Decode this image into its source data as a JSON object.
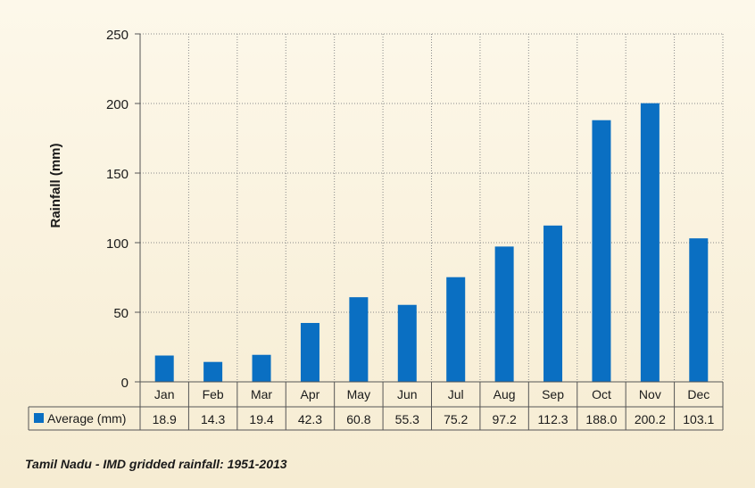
{
  "caption": "Tamil Nadu - IMD gridded rainfall: 1951-2013",
  "colors": {
    "bar": "#0a6fc2",
    "grid": "#8a8a8a",
    "axis": "#555555",
    "text": "#1a1a1a"
  },
  "chart_data": {
    "type": "bar",
    "categories": [
      "Jan",
      "Feb",
      "Mar",
      "Apr",
      "May",
      "Jun",
      "Jul",
      "Aug",
      "Sep",
      "Oct",
      "Nov",
      "Dec"
    ],
    "series": [
      {
        "name": "Average (mm)",
        "values": [
          18.9,
          14.3,
          19.4,
          42.3,
          60.8,
          55.3,
          75.2,
          97.2,
          112.3,
          188.0,
          200.2,
          103.1
        ],
        "value_labels": [
          "18.9",
          "14.3",
          "19.4",
          "42.3",
          "60.8",
          "55.3",
          "75.2",
          "97.2",
          "112.3",
          "188.0",
          "200.2",
          "103.1"
        ]
      }
    ],
    "ylabel": "Rainfall (mm)",
    "ylim": [
      0,
      250
    ],
    "yticks": [
      0,
      50,
      100,
      150,
      200,
      250
    ],
    "grid": true,
    "data_table": true
  }
}
